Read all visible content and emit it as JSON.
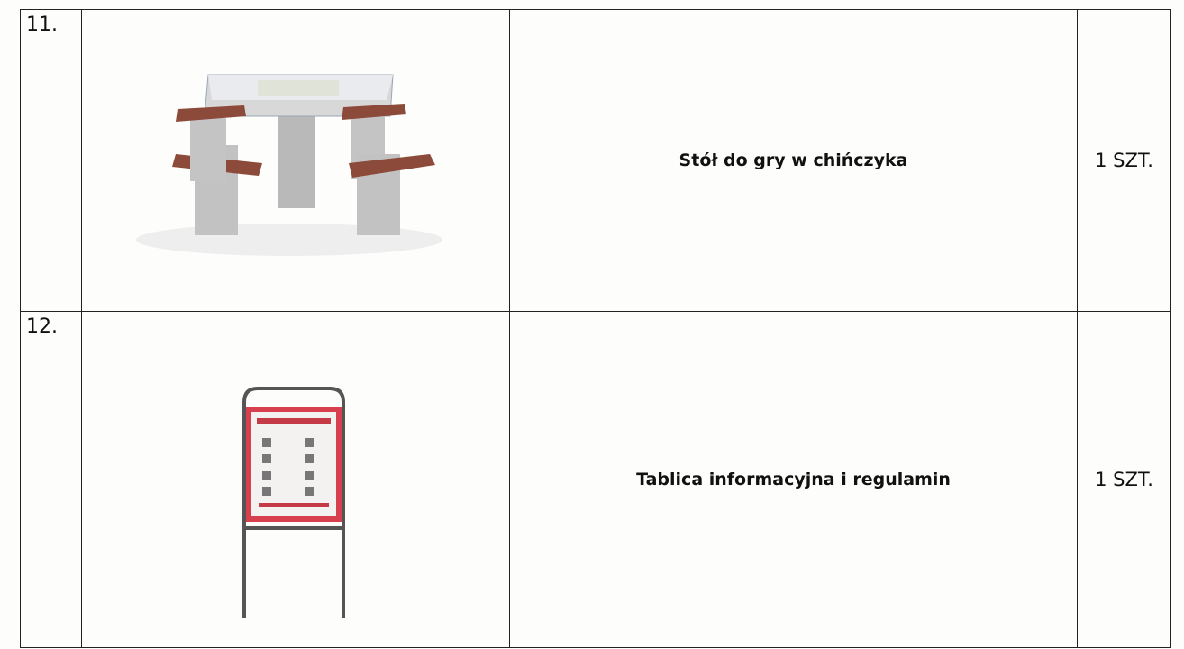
{
  "table": {
    "rows": [
      [
        "11.",
        "Stół do gry w chińczyka",
        "1 SZT."
      ],
      [
        "12.",
        "Tablica informacyjna i regulamin",
        "1 SZT."
      ]
    ]
  }
}
